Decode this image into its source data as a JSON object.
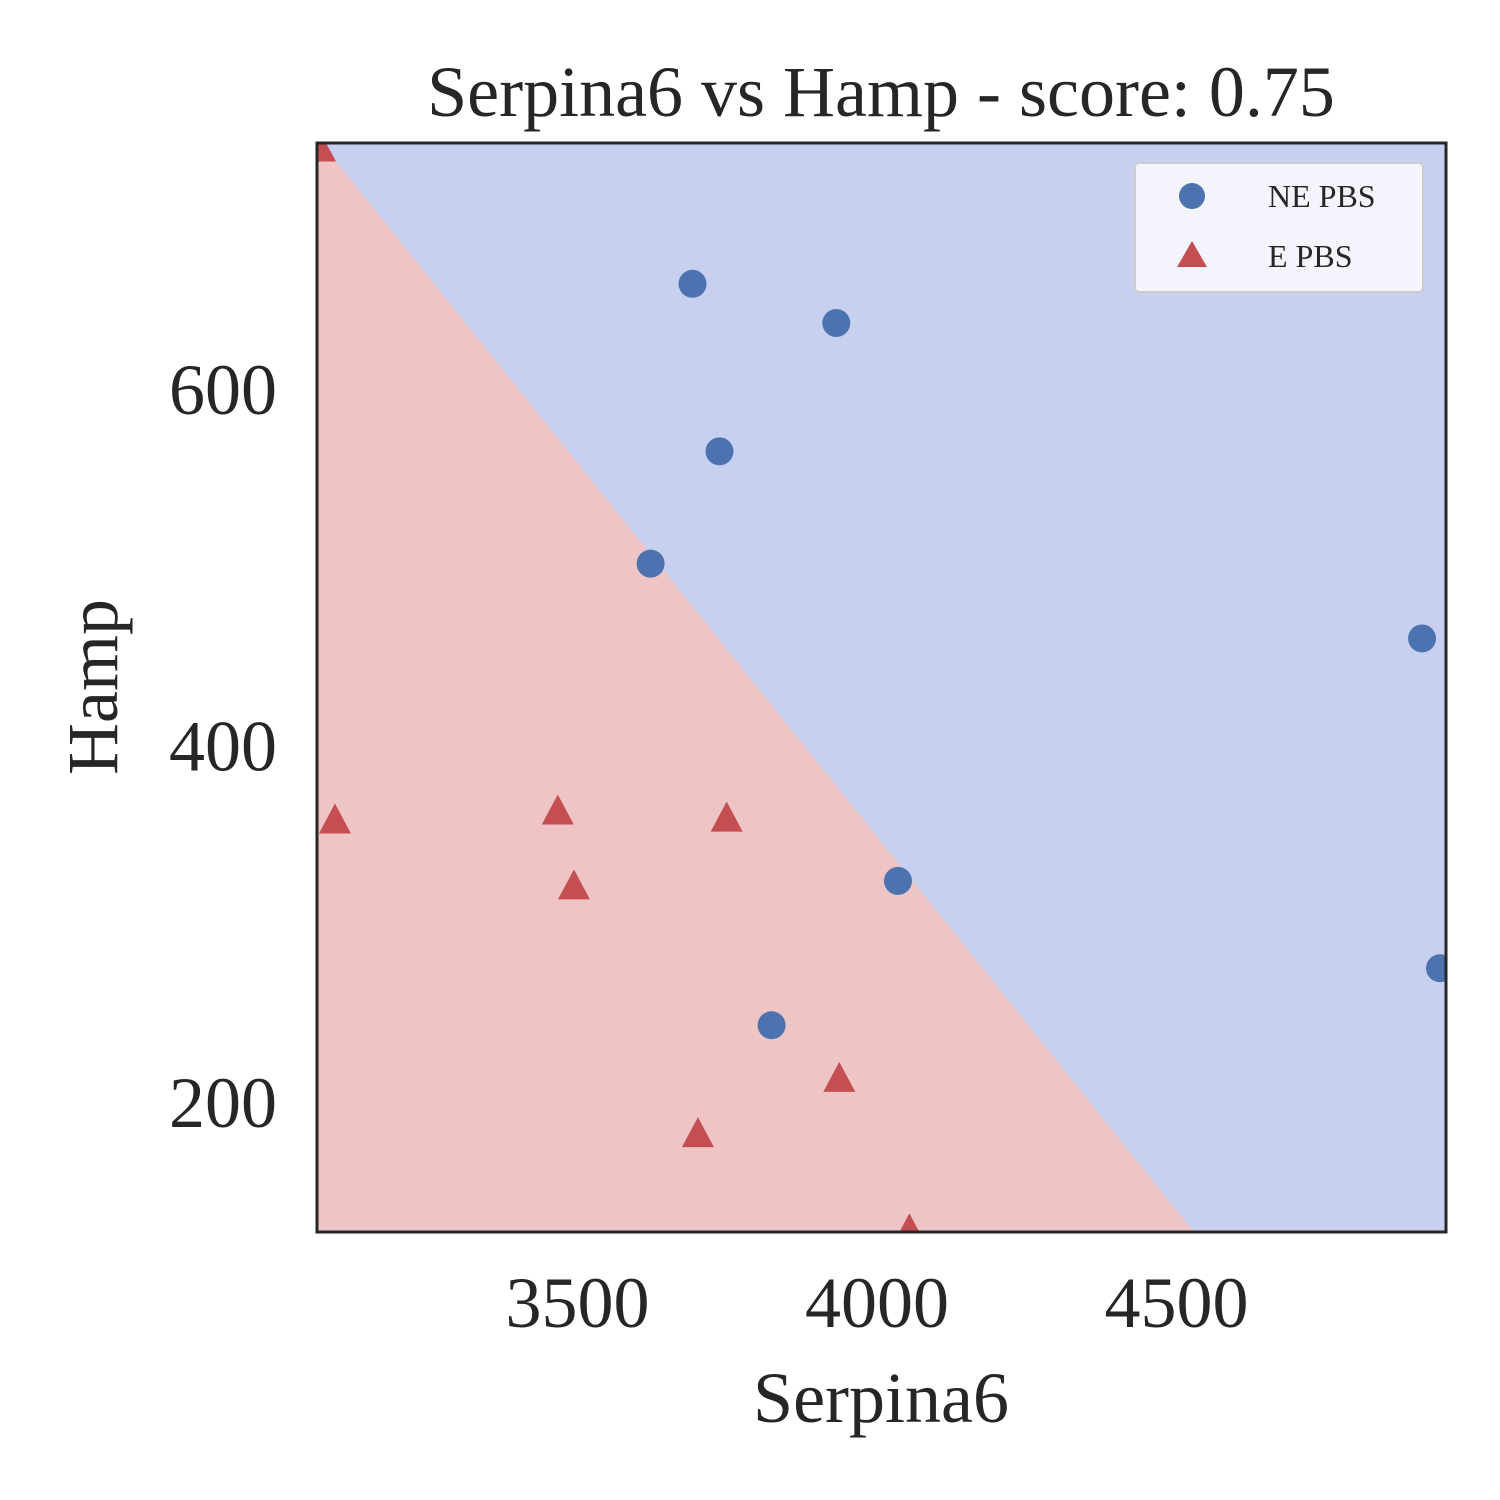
{
  "chart_data": {
    "type": "scatter",
    "title": "Serpina6 vs Hamp - score: 0.75",
    "xlabel": "Serpina6",
    "ylabel": "Hamp",
    "xlim": [
      3065,
      4950
    ],
    "ylim": [
      127,
      738
    ],
    "xticks": [
      3500,
      4000,
      4500
    ],
    "yticks": [
      200,
      400,
      600
    ],
    "xtick_labels": [
      "3500",
      "4000",
      "4500"
    ],
    "ytick_labels": [
      "200",
      "400",
      "600"
    ],
    "grid": false,
    "legend_position": "top-right",
    "decision_boundary": {
      "points": [
        [
          3072,
          738
        ],
        [
          4529,
          127
        ]
      ],
      "upper_region_class": "NE PBS",
      "lower_region_class": "E PBS",
      "upper_color": "#c8d0f0",
      "lower_color": "#eec4c4"
    },
    "series": [
      {
        "name": "NE PBS",
        "marker": "circle",
        "color": "#4c72b0",
        "points": [
          [
            3692,
            659
          ],
          [
            3932,
            637
          ],
          [
            3737,
            565
          ],
          [
            3622,
            502
          ],
          [
            4910,
            460
          ],
          [
            4035,
            324
          ],
          [
            3824,
            243
          ],
          [
            4940,
            275
          ]
        ]
      },
      {
        "name": "E PBS",
        "marker": "triangle",
        "color": "#c44e52",
        "points": [
          [
            3070,
            734
          ],
          [
            3095,
            357
          ],
          [
            3467,
            362
          ],
          [
            3494,
            320
          ],
          [
            3749,
            358
          ],
          [
            3937,
            212
          ],
          [
            3701,
            181
          ],
          [
            4054,
            127
          ]
        ]
      }
    ]
  }
}
